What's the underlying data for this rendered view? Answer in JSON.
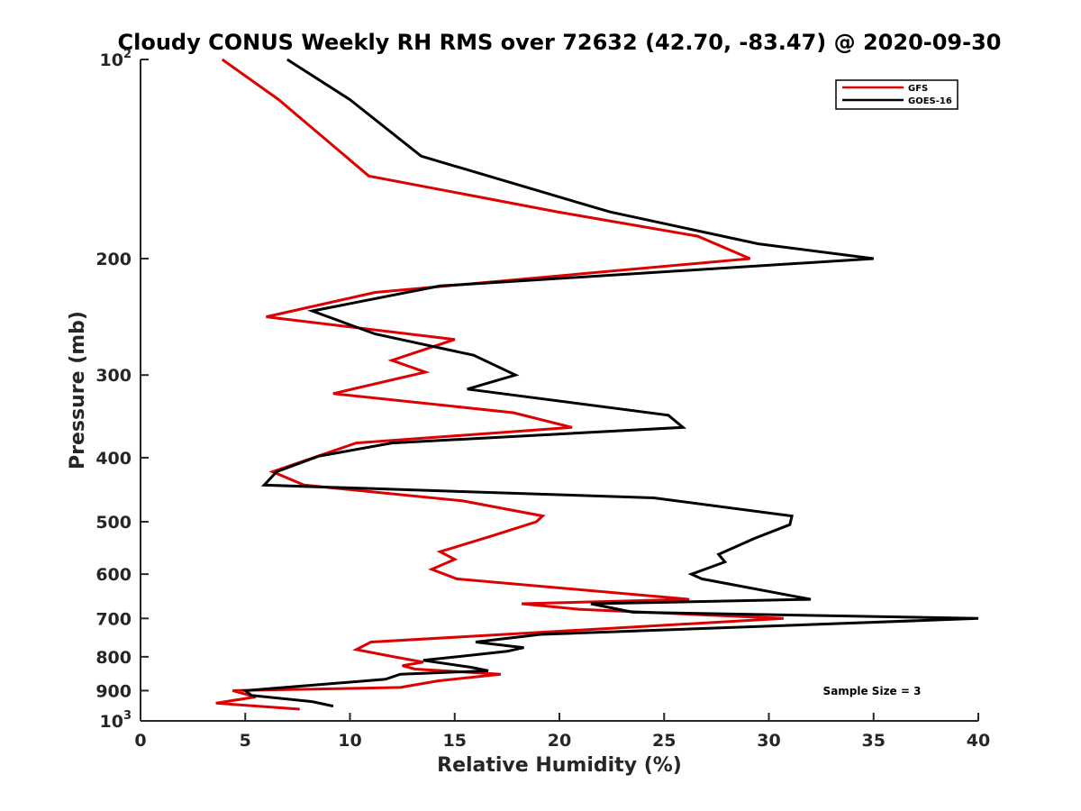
{
  "chart_data": {
    "type": "line",
    "title": "Cloudy CONUS Weekly RH RMS over 72632 (42.70, -83.47) @ 2020-09-30",
    "xlabel": "Relative Humidity (%)",
    "ylabel": "Pressure (mb)",
    "xlim": [
      0,
      40
    ],
    "ylim": [
      100,
      1000
    ],
    "y_scale": "log",
    "y_reversed": true,
    "x_ticks": [
      "0",
      "5",
      "10",
      "15",
      "20",
      "25",
      "30",
      "35",
      "40"
    ],
    "y_ticks": [
      {
        "value": 100,
        "base": "10",
        "exp": "2"
      },
      {
        "value": 200,
        "label": "200"
      },
      {
        "value": 300,
        "label": "300"
      },
      {
        "value": 400,
        "label": "400"
      },
      {
        "value": 500,
        "label": "500"
      },
      {
        "value": 600,
        "label": "600"
      },
      {
        "value": 700,
        "label": "700"
      },
      {
        "value": 800,
        "label": "800"
      },
      {
        "value": 900,
        "label": "900"
      },
      {
        "value": 1000,
        "base": "10",
        "exp": "3"
      }
    ],
    "grid": false,
    "legend_position": "top-right",
    "annotation": "Sample Size = 3",
    "series": [
      {
        "name": "GFS",
        "color": "#dd0000",
        "points": [
          [
            3.9,
            100
          ],
          [
            6.6,
            115
          ],
          [
            10.9,
            150
          ],
          [
            19.9,
            170
          ],
          [
            26.6,
            185
          ],
          [
            29.1,
            200
          ],
          [
            11.2,
            225
          ],
          [
            6.0,
            245
          ],
          [
            15.0,
            265
          ],
          [
            12.0,
            285
          ],
          [
            13.6,
            297
          ],
          [
            9.2,
            320
          ],
          [
            17.8,
            342
          ],
          [
            20.6,
            360
          ],
          [
            10.3,
            380
          ],
          [
            6.3,
            420
          ],
          [
            7.8,
            440
          ],
          [
            15.4,
            465
          ],
          [
            19.2,
            490
          ],
          [
            18.9,
            500
          ],
          [
            16.8,
            525
          ],
          [
            14.3,
            555
          ],
          [
            15.0,
            570
          ],
          [
            13.9,
            590
          ],
          [
            15.1,
            610
          ],
          [
            26.2,
            655
          ],
          [
            18.2,
            665
          ],
          [
            20.9,
            678
          ],
          [
            30.7,
            700
          ],
          [
            11.0,
            760
          ],
          [
            10.3,
            780
          ],
          [
            12.1,
            800
          ],
          [
            13.5,
            815
          ],
          [
            12.5,
            825
          ],
          [
            13.1,
            835
          ],
          [
            17.2,
            850
          ],
          [
            14.2,
            870
          ],
          [
            12.4,
            890
          ],
          [
            4.4,
            900
          ],
          [
            5.5,
            920
          ],
          [
            3.6,
            940
          ],
          [
            7.6,
            960
          ]
        ]
      },
      {
        "name": "GOES-16",
        "color": "#000000",
        "points": [
          [
            7.0,
            100
          ],
          [
            10.0,
            115
          ],
          [
            13.4,
            140
          ],
          [
            22.4,
            170
          ],
          [
            29.5,
            190
          ],
          [
            35.0,
            200
          ],
          [
            14.3,
            220
          ],
          [
            8.2,
            240
          ],
          [
            11.2,
            260
          ],
          [
            15.9,
            280
          ],
          [
            17.9,
            300
          ],
          [
            15.6,
            315
          ],
          [
            25.2,
            345
          ],
          [
            25.9,
            360
          ],
          [
            12.0,
            380
          ],
          [
            8.5,
            398
          ],
          [
            6.5,
            420
          ],
          [
            5.9,
            440
          ],
          [
            24.5,
            460
          ],
          [
            31.1,
            490
          ],
          [
            31.0,
            505
          ],
          [
            29.3,
            530
          ],
          [
            27.6,
            560
          ],
          [
            27.9,
            575
          ],
          [
            26.3,
            600
          ],
          [
            26.8,
            610
          ],
          [
            32.0,
            655
          ],
          [
            21.5,
            665
          ],
          [
            23.5,
            685
          ],
          [
            40.0,
            700
          ],
          [
            19.1,
            740
          ],
          [
            16.0,
            760
          ],
          [
            18.3,
            775
          ],
          [
            17.5,
            785
          ],
          [
            13.5,
            810
          ],
          [
            15.8,
            830
          ],
          [
            16.6,
            840
          ],
          [
            12.4,
            850
          ],
          [
            11.7,
            865
          ],
          [
            5.0,
            900
          ],
          [
            5.3,
            915
          ],
          [
            8.2,
            935
          ],
          [
            9.2,
            950
          ]
        ]
      }
    ]
  }
}
